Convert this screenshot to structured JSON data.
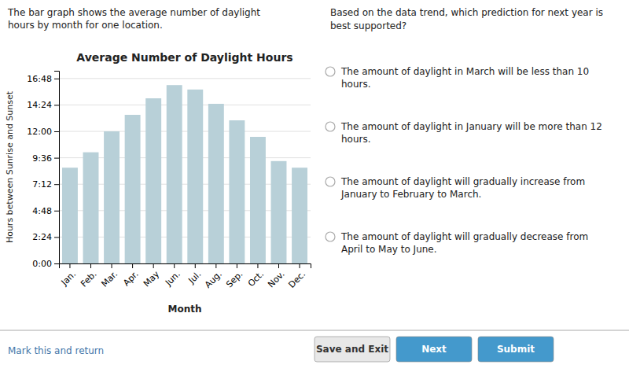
{
  "chart_data": {
    "type": "bar",
    "title": "Average Number of Daylight Hours",
    "xlabel": "Month",
    "ylabel": "Hours between Sunrise and Sunset",
    "categories": [
      "Jan.",
      "Feb.",
      "Mar.",
      "Apr.",
      "May",
      "Jun.",
      "Jul.",
      "Aug.",
      "Sep.",
      "Oct.",
      "Nov.",
      "Dec."
    ],
    "values": [
      8.7,
      10.1,
      12.0,
      13.5,
      15.0,
      16.2,
      15.8,
      14.5,
      13.0,
      11.5,
      9.3,
      8.7
    ],
    "color": "#b8d0d8",
    "ylim": [
      0,
      17.5
    ],
    "yticks": [
      {
        "value": 0,
        "label": "0:00"
      },
      {
        "value": 2.4,
        "label": "2:24"
      },
      {
        "value": 4.8,
        "label": "4:48"
      },
      {
        "value": 7.2,
        "label": "7:12"
      },
      {
        "value": 9.6,
        "label": "9:36"
      },
      {
        "value": 12.0,
        "label": "12:00"
      },
      {
        "value": 14.4,
        "label": "14:24"
      },
      {
        "value": 16.8,
        "label": "16:48"
      }
    ],
    "grid": true
  },
  "intro": "The bar graph shows the average number of daylight\nhours by month for one location.",
  "question": "Based on the data trend, which prediction for next year is\nbest supported?",
  "options": [
    "The amount of daylight in March will be less than 10\nhours.",
    "The amount of daylight in January will be more than 12\nhours.",
    "The amount of daylight will gradually increase from\nJanuary to February to March.",
    "The amount of daylight will gradually decrease from\nApril to May to June."
  ],
  "link": "Mark this and return",
  "buttons": [
    "Save and Exit",
    "Next",
    "Submit"
  ]
}
